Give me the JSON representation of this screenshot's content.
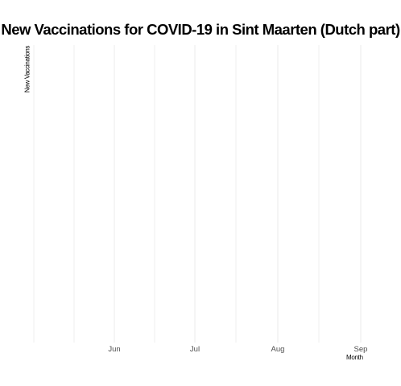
{
  "chart_data": {
    "type": "bar",
    "title": "New Vaccinations for COVID-19 in Sint Maarten (Dutch part)",
    "xlabel": "Month",
    "ylabel": "New Vaccinations",
    "x_ticks": [
      "Jun",
      "Jul",
      "Aug",
      "Sep"
    ],
    "categories": [],
    "values": [],
    "grid": true,
    "colors": {
      "grid": "#ebebeb",
      "tick_text": "#4d4d4d",
      "title": "#000000"
    }
  }
}
